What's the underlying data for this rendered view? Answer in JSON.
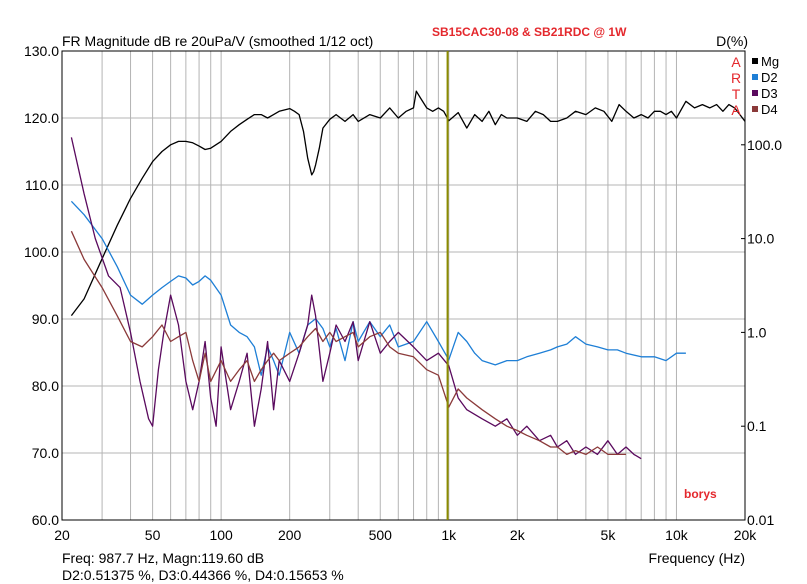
{
  "chart_data": {
    "type": "line",
    "title": "FR Magnitude dB re 20uPa/V (smoothed 1/12 oct)",
    "subtitle": "SB15CAC30-08 & SB21RDC @ 1W",
    "right_axis_title": "D(%)",
    "xlabel": "Frequency (Hz)",
    "x_scale": "log",
    "xlim": [
      20,
      20000
    ],
    "ylim": [
      60,
      130
    ],
    "y2_scale": "log",
    "y2lim": [
      0.01,
      1000
    ],
    "x_ticks": [
      20,
      50,
      100,
      200,
      500,
      1000,
      2000,
      5000,
      10000,
      20000
    ],
    "x_tick_labels": [
      "20",
      "50",
      "100",
      "200",
      "500",
      "1k",
      "2k",
      "5k",
      "10k",
      "20k"
    ],
    "y_ticks": [
      60,
      70,
      80,
      90,
      100,
      110,
      120,
      130
    ],
    "y_tick_labels": [
      "60.0",
      "70.0",
      "80.0",
      "90.0",
      "100.0",
      "110.0",
      "120.0",
      "130.0"
    ],
    "y2_ticks": [
      0.01,
      0.1,
      1,
      10,
      100
    ],
    "y2_tick_labels": [
      "0.01",
      "0.1",
      "1.0",
      "10.0",
      "100.0"
    ],
    "grid": true,
    "cursor_freq": 987.7,
    "brand": "ARTA",
    "watermark": "borys",
    "readout_line1": "Freq: 987.7 Hz, Magn:119.60 dB",
    "readout_line2": "D2:0.51375 %, D3:0.44366 %, D4:0.15653 %",
    "legend_position": "top-right",
    "series": [
      {
        "name": "Mg",
        "axis": "left",
        "color": "#000000",
        "x": [
          22,
          25,
          30,
          35,
          40,
          45,
          50,
          55,
          60,
          65,
          70,
          75,
          80,
          85,
          90,
          100,
          110,
          120,
          130,
          140,
          150,
          160,
          170,
          180,
          200,
          210,
          220,
          230,
          240,
          250,
          255,
          260,
          270,
          280,
          300,
          320,
          350,
          380,
          400,
          450,
          500,
          550,
          600,
          650,
          700,
          720,
          750,
          800,
          850,
          900,
          950,
          1000,
          1100,
          1200,
          1300,
          1400,
          1500,
          1600,
          1700,
          1800,
          2000,
          2200,
          2400,
          2600,
          2800,
          3000,
          3300,
          3600,
          4000,
          4400,
          4800,
          5200,
          5600,
          6000,
          6500,
          7000,
          7500,
          8000,
          8500,
          9000,
          9500,
          10000,
          11000,
          12000,
          13000,
          14000,
          15000,
          16000,
          17000,
          18000,
          19000,
          20000
        ],
        "y": [
          90.5,
          93,
          99,
          104,
          108,
          111,
          113.5,
          115,
          116,
          116.5,
          116.5,
          116.3,
          115.8,
          115.3,
          115.5,
          116.5,
          118,
          119,
          119.8,
          120.5,
          120.5,
          120,
          120.5,
          121,
          121.4,
          121,
          120.5,
          118,
          114,
          111.5,
          112,
          113,
          115.5,
          118.5,
          119.8,
          120.5,
          119.5,
          120.5,
          119.5,
          120.5,
          120,
          121.5,
          120,
          121,
          121.5,
          124,
          123,
          121.5,
          121,
          121.5,
          121,
          119.6,
          120.8,
          118.5,
          120.5,
          119.5,
          121,
          119,
          120.5,
          120,
          120,
          119.5,
          121,
          120.5,
          119.5,
          119.5,
          120,
          121,
          120.5,
          121.5,
          121,
          119.5,
          122,
          121,
          120,
          120.5,
          120,
          121,
          121,
          120.5,
          121,
          120,
          122.5,
          121.5,
          122,
          121.5,
          122,
          121,
          122,
          121.5,
          120.5,
          119.5
        ]
      },
      {
        "name": "D2",
        "axis": "right",
        "color": "#1e7fd6",
        "x": [
          22,
          25,
          30,
          35,
          40,
          45,
          50,
          55,
          60,
          65,
          70,
          75,
          80,
          85,
          90,
          100,
          110,
          120,
          130,
          140,
          150,
          160,
          170,
          180,
          200,
          220,
          240,
          260,
          280,
          300,
          320,
          350,
          380,
          400,
          450,
          500,
          550,
          600,
          700,
          800,
          900,
          1000,
          1100,
          1200,
          1300,
          1400,
          1600,
          1800,
          2000,
          2200,
          2500,
          2800,
          3000,
          3300,
          3600,
          4000,
          4500,
          5000,
          5500,
          6000,
          7000,
          8000,
          9000,
          10000,
          11000
        ],
        "y": [
          25,
          18,
          10,
          5,
          2.5,
          2,
          2.5,
          3,
          3.5,
          4,
          3.8,
          3.2,
          3.5,
          4,
          3.6,
          2.5,
          1.2,
          1,
          0.9,
          0.7,
          0.35,
          0.7,
          0.5,
          0.35,
          1,
          0.6,
          1.2,
          1.4,
          1.1,
          0.7,
          1.1,
          0.5,
          1.3,
          0.8,
          1.3,
          0.9,
          1.2,
          0.7,
          0.8,
          1.3,
          0.8,
          0.51,
          1,
          0.8,
          0.6,
          0.5,
          0.45,
          0.5,
          0.5,
          0.55,
          0.6,
          0.65,
          0.7,
          0.75,
          0.9,
          0.75,
          0.7,
          0.65,
          0.65,
          0.6,
          0.55,
          0.55,
          0.5,
          0.6,
          0.6
        ]
      },
      {
        "name": "D3",
        "axis": "right",
        "color": "#5a0a5e",
        "x": [
          22,
          25,
          28,
          32,
          36,
          40,
          44,
          48,
          50,
          53,
          56,
          60,
          65,
          70,
          75,
          80,
          85,
          90,
          95,
          100,
          110,
          120,
          130,
          140,
          150,
          160,
          170,
          180,
          200,
          220,
          240,
          250,
          260,
          280,
          300,
          320,
          350,
          380,
          400,
          450,
          500,
          550,
          600,
          700,
          800,
          900,
          1000,
          1100,
          1200,
          1400,
          1600,
          1800,
          2000,
          2200,
          2500,
          2800,
          3000,
          3300,
          3600,
          4000,
          4500,
          5000,
          5500,
          6000,
          6500,
          7000
        ],
        "y": [
          120,
          30,
          10,
          4,
          3,
          1,
          0.3,
          0.12,
          0.1,
          0.4,
          1,
          2.5,
          1.2,
          0.3,
          0.15,
          0.3,
          0.8,
          0.2,
          0.1,
          0.7,
          0.15,
          0.3,
          0.6,
          0.1,
          0.25,
          0.8,
          0.15,
          0.5,
          0.3,
          0.6,
          1.2,
          2.5,
          1.5,
          0.3,
          0.6,
          1.2,
          0.8,
          1.3,
          0.5,
          1.3,
          0.6,
          0.8,
          1.0,
          0.7,
          0.5,
          0.6,
          0.44,
          0.2,
          0.15,
          0.12,
          0.1,
          0.12,
          0.08,
          0.1,
          0.07,
          0.08,
          0.06,
          0.07,
          0.05,
          0.06,
          0.05,
          0.07,
          0.05,
          0.06,
          0.05,
          0.045
        ]
      },
      {
        "name": "D4",
        "axis": "right",
        "color": "#8b3a3a",
        "x": [
          22,
          25,
          30,
          35,
          40,
          45,
          50,
          55,
          60,
          65,
          70,
          75,
          80,
          85,
          90,
          100,
          110,
          120,
          130,
          140,
          150,
          160,
          170,
          180,
          200,
          220,
          240,
          260,
          280,
          300,
          320,
          350,
          380,
          400,
          450,
          500,
          550,
          600,
          700,
          800,
          900,
          1000,
          1100,
          1200,
          1400,
          1600,
          1800,
          2000,
          2200,
          2500,
          2800,
          3000,
          3300,
          3600,
          4000,
          4500,
          5000,
          5500,
          6000
        ],
        "y": [
          12,
          6,
          3,
          1.5,
          0.8,
          0.7,
          0.9,
          1.2,
          0.8,
          0.9,
          1,
          0.5,
          0.3,
          0.6,
          0.3,
          0.5,
          0.3,
          0.4,
          0.5,
          0.3,
          0.4,
          0.5,
          0.6,
          0.5,
          0.6,
          0.7,
          0.9,
          1.1,
          0.8,
          1,
          0.8,
          0.9,
          1,
          0.7,
          0.9,
          1,
          0.7,
          0.6,
          0.55,
          0.4,
          0.35,
          0.16,
          0.25,
          0.2,
          0.15,
          0.12,
          0.1,
          0.09,
          0.08,
          0.07,
          0.06,
          0.06,
          0.05,
          0.055,
          0.05,
          0.06,
          0.05,
          0.05,
          0.05
        ]
      }
    ]
  }
}
